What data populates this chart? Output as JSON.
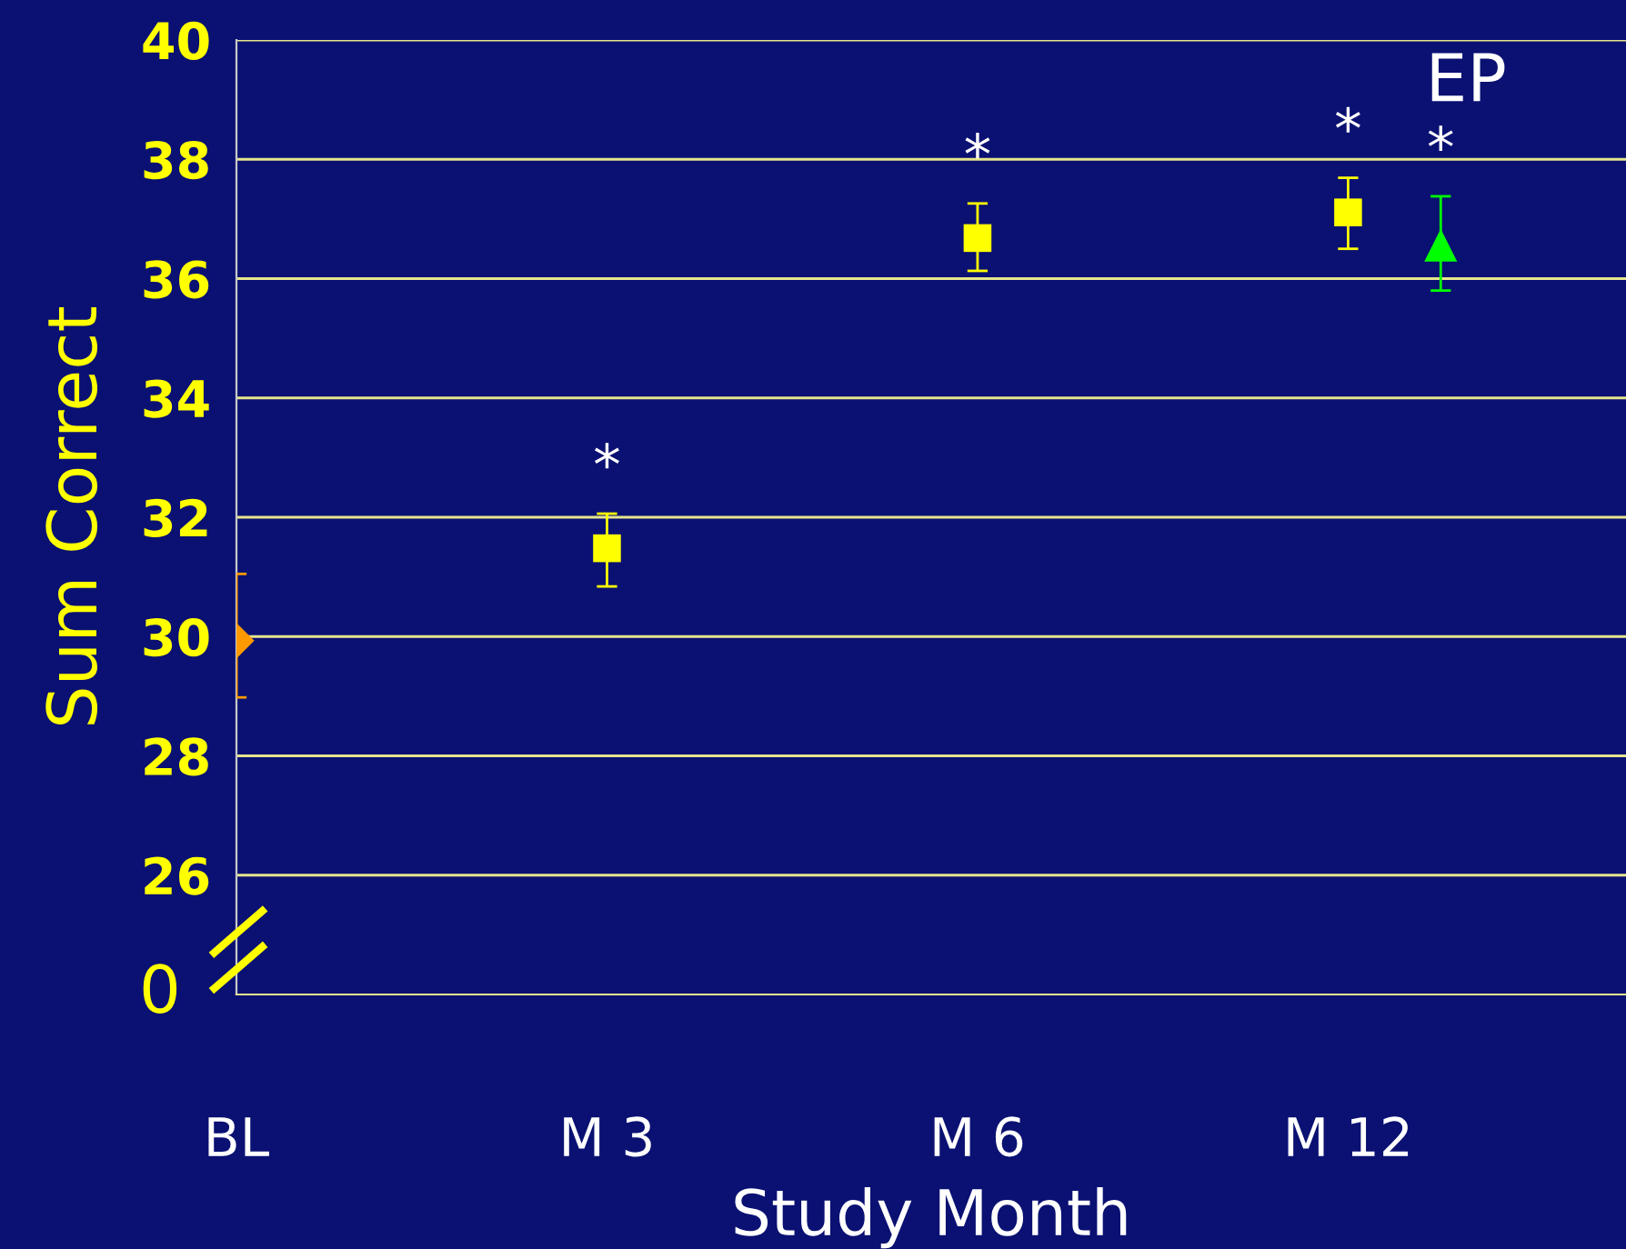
{
  "chart_data": {
    "type": "scatter",
    "xlabel": "Study Month",
    "ylabel": "Sum Correct",
    "categories": [
      "BL",
      "M 3",
      "M 6",
      "M 12"
    ],
    "ylim": [
      24,
      40
    ],
    "yticks": [
      26,
      28,
      30,
      32,
      34,
      36,
      38,
      40
    ],
    "grid": "y",
    "legend": false,
    "series": [
      {
        "color": "#ff9900",
        "marker": "diamond",
        "values": [
          29.93,
          null,
          null,
          null
        ],
        "errors": [
          [
            28.98,
            31.05
          ],
          null,
          null,
          null
        ]
      },
      {
        "color": "#ffff00",
        "marker": "square",
        "values": [
          null,
          31.48,
          36.68,
          37.11
        ],
        "errors": [
          null,
          [
            30.84,
            32.06
          ],
          [
            36.13,
            37.26
          ],
          [
            36.5,
            37.69
          ]
        ]
      },
      {
        "color": "#00ff00",
        "marker": "triangle",
        "values": [
          null,
          null,
          null,
          36.56
        ],
        "errors": [
          null,
          null,
          null,
          [
            35.8,
            37.38
          ]
        ]
      }
    ],
    "annotations": [
      {
        "text": "*",
        "x": "M 3",
        "y": 31.48
      },
      {
        "text": "*",
        "x": "M 6",
        "y": 36.68
      },
      {
        "text": "*",
        "x": "M 12",
        "y": 37.11
      },
      {
        "text": "*",
        "x": "M 12",
        "y": 36.56
      },
      "0",
      "EP"
    ]
  }
}
